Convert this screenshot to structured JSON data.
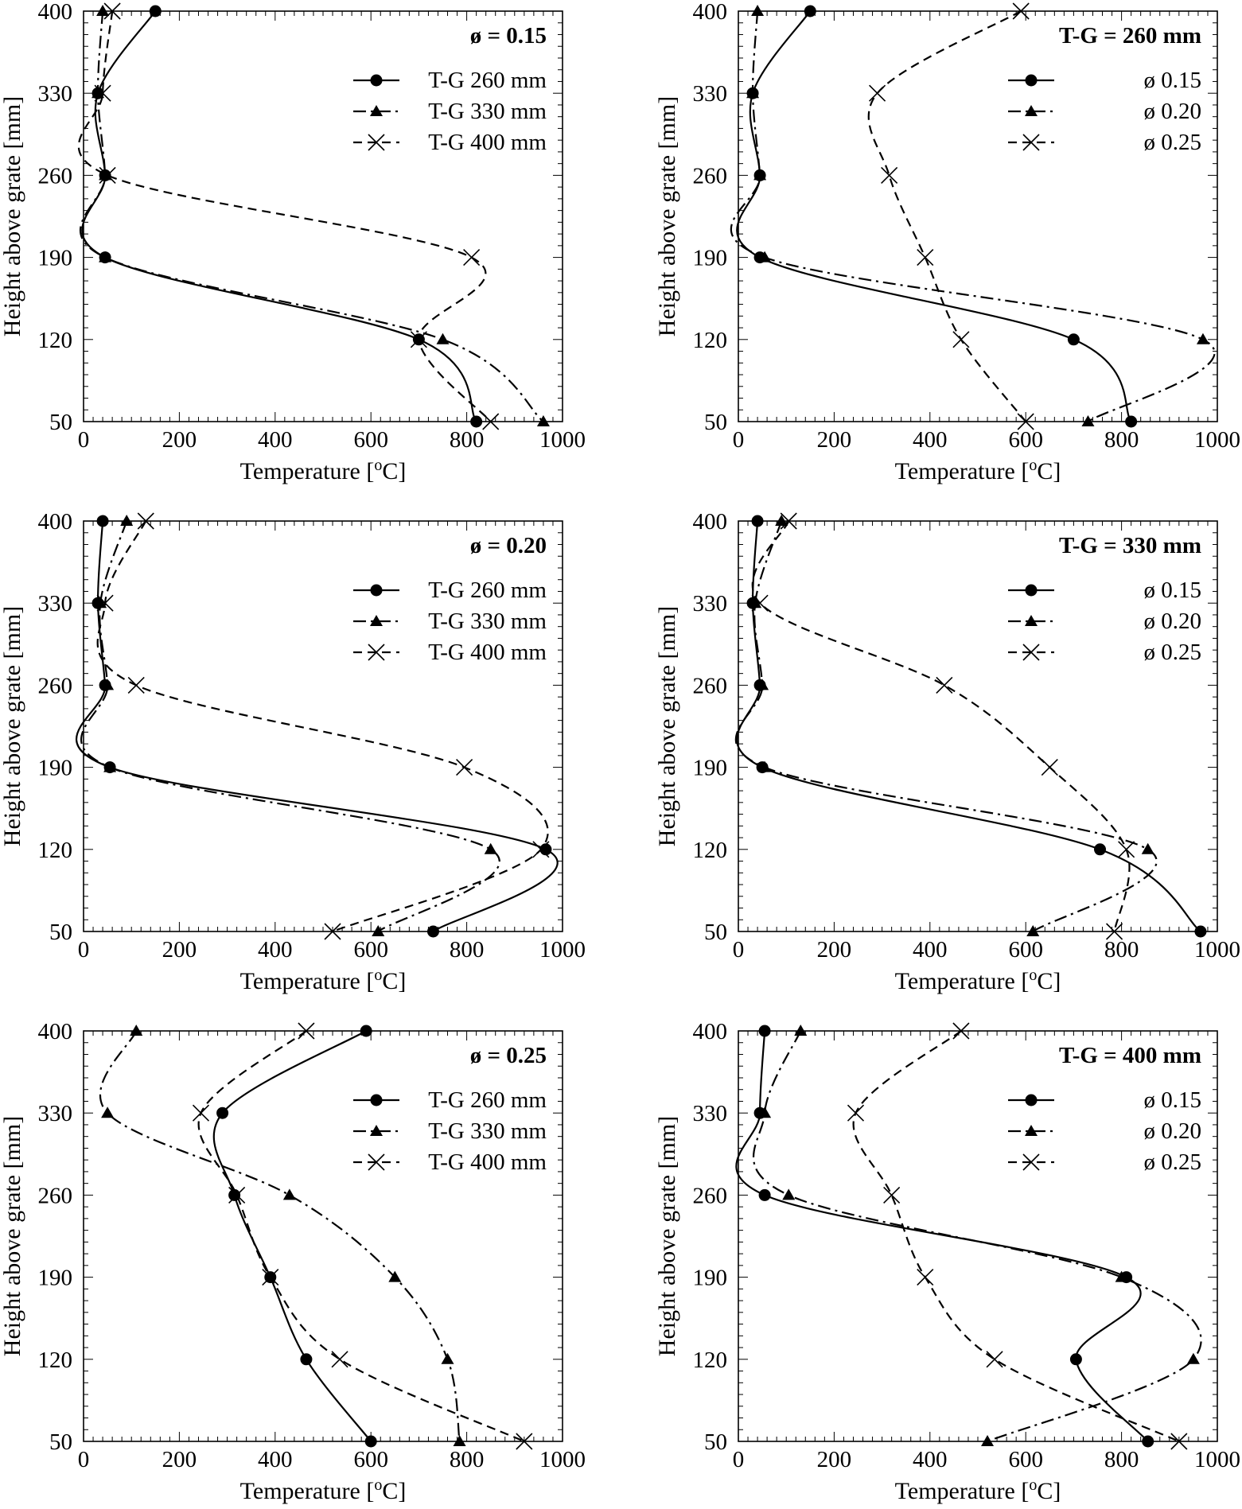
{
  "chart_data": [
    {
      "type": "line",
      "title": "ø = 0.15",
      "xlabel": "Temperature [",
      "xlabel_sup": "o",
      "xlabel_end": "C]",
      "ylabel": "Height above grate [mm]",
      "xlim": [
        0,
        1000
      ],
      "ylim": [
        50,
        400
      ],
      "xticks": [
        "0",
        "200",
        "400",
        "600",
        "800",
        "1000"
      ],
      "yticks": [
        "50",
        "120",
        "190",
        "260",
        "330",
        "400"
      ],
      "ytick_values": [
        50,
        120,
        190,
        260,
        330,
        400
      ],
      "legend_position": "top-right",
      "series": [
        {
          "name": "T-G 260 mm",
          "marker": "circle",
          "dash": "solid",
          "points": [
            {
              "x": 150,
              "y": 400
            },
            {
              "x": 30,
              "y": 330
            },
            {
              "x": 45,
              "y": 260
            },
            {
              "x": 45,
              "y": 190
            },
            {
              "x": 700,
              "y": 120
            },
            {
              "x": 820,
              "y": 50
            }
          ]
        },
        {
          "name": "T-G 330 mm",
          "marker": "triangle",
          "dash": "dashdot",
          "points": [
            {
              "x": 40,
              "y": 400
            },
            {
              "x": 30,
              "y": 330
            },
            {
              "x": 45,
              "y": 260
            },
            {
              "x": 45,
              "y": 190
            },
            {
              "x": 750,
              "y": 120
            },
            {
              "x": 960,
              "y": 50
            }
          ]
        },
        {
          "name": "T-G 400 mm",
          "marker": "x",
          "dash": "dashed",
          "points": [
            {
              "x": 60,
              "y": 400
            },
            {
              "x": 40,
              "y": 330
            },
            {
              "x": 50,
              "y": 260
            },
            {
              "x": 810,
              "y": 190
            },
            {
              "x": 700,
              "y": 120
            },
            {
              "x": 850,
              "y": 50
            }
          ]
        }
      ]
    },
    {
      "type": "line",
      "title": "T-G = 260 mm",
      "xlabel": "Temperature [",
      "xlabel_sup": "o",
      "xlabel_end": "C]",
      "ylabel": "Height above grate [mm]",
      "xlim": [
        0,
        1000
      ],
      "ylim": [
        50,
        400
      ],
      "xticks": [
        "0",
        "200",
        "400",
        "600",
        "800",
        "1000"
      ],
      "yticks": [
        "50",
        "120",
        "190",
        "260",
        "330",
        "400"
      ],
      "ytick_values": [
        50,
        120,
        190,
        260,
        330,
        400
      ],
      "legend_position": "top-right",
      "series": [
        {
          "name": "ø 0.15",
          "marker": "circle",
          "dash": "solid",
          "points": [
            {
              "x": 150,
              "y": 400
            },
            {
              "x": 30,
              "y": 330
            },
            {
              "x": 45,
              "y": 260
            },
            {
              "x": 45,
              "y": 190
            },
            {
              "x": 700,
              "y": 120
            },
            {
              "x": 820,
              "y": 50
            }
          ]
        },
        {
          "name": "ø 0.20",
          "marker": "triangle",
          "dash": "dashdot",
          "points": [
            {
              "x": 40,
              "y": 400
            },
            {
              "x": 30,
              "y": 330
            },
            {
              "x": 45,
              "y": 260
            },
            {
              "x": 55,
              "y": 190
            },
            {
              "x": 970,
              "y": 120
            },
            {
              "x": 730,
              "y": 50
            }
          ]
        },
        {
          "name": "ø 0.25",
          "marker": "x",
          "dash": "dashed",
          "points": [
            {
              "x": 590,
              "y": 400
            },
            {
              "x": 290,
              "y": 330
            },
            {
              "x": 315,
              "y": 260
            },
            {
              "x": 390,
              "y": 190
            },
            {
              "x": 465,
              "y": 120
            },
            {
              "x": 600,
              "y": 50
            }
          ]
        }
      ]
    },
    {
      "type": "line",
      "title": "ø = 0.20",
      "xlabel": "Temperature [",
      "xlabel_sup": "o",
      "xlabel_end": "C]",
      "ylabel": "Height above grate [mm]",
      "xlim": [
        0,
        1000
      ],
      "ylim": [
        50,
        400
      ],
      "xticks": [
        "0",
        "200",
        "400",
        "600",
        "800",
        "1000"
      ],
      "yticks": [
        "50",
        "120",
        "190",
        "260",
        "330",
        "400"
      ],
      "ytick_values": [
        50,
        120,
        190,
        260,
        330,
        400
      ],
      "legend_position": "top-right",
      "series": [
        {
          "name": "T-G 260 mm",
          "marker": "circle",
          "dash": "solid",
          "points": [
            {
              "x": 40,
              "y": 400
            },
            {
              "x": 30,
              "y": 330
            },
            {
              "x": 45,
              "y": 260
            },
            {
              "x": 55,
              "y": 190
            },
            {
              "x": 965,
              "y": 120
            },
            {
              "x": 730,
              "y": 50
            }
          ]
        },
        {
          "name": "T-G 330 mm",
          "marker": "triangle",
          "dash": "dashdot",
          "points": [
            {
              "x": 90,
              "y": 400
            },
            {
              "x": 35,
              "y": 330
            },
            {
              "x": 50,
              "y": 260
            },
            {
              "x": 55,
              "y": 190
            },
            {
              "x": 850,
              "y": 120
            },
            {
              "x": 615,
              "y": 50
            }
          ]
        },
        {
          "name": "T-G 400 mm",
          "marker": "x",
          "dash": "dashed",
          "points": [
            {
              "x": 130,
              "y": 400
            },
            {
              "x": 45,
              "y": 330
            },
            {
              "x": 110,
              "y": 260
            },
            {
              "x": 795,
              "y": 190
            },
            {
              "x": 955,
              "y": 120
            },
            {
              "x": 520,
              "y": 50
            }
          ]
        }
      ]
    },
    {
      "type": "line",
      "title": "T-G = 330 mm",
      "xlabel": "Temperature [",
      "xlabel_sup": "o",
      "xlabel_end": "C]",
      "ylabel": "Height above grate [mm]",
      "xlim": [
        0,
        1000
      ],
      "ylim": [
        50,
        400
      ],
      "xticks": [
        "0",
        "200",
        "400",
        "600",
        "800",
        "1000"
      ],
      "yticks": [
        "50",
        "120",
        "190",
        "260",
        "330",
        "400"
      ],
      "ytick_values": [
        50,
        120,
        190,
        260,
        330,
        400
      ],
      "legend_position": "top-right",
      "series": [
        {
          "name": "ø 0.15",
          "marker": "circle",
          "dash": "solid",
          "points": [
            {
              "x": 40,
              "y": 400
            },
            {
              "x": 30,
              "y": 330
            },
            {
              "x": 45,
              "y": 260
            },
            {
              "x": 50,
              "y": 190
            },
            {
              "x": 755,
              "y": 120
            },
            {
              "x": 965,
              "y": 50
            }
          ]
        },
        {
          "name": "ø 0.20",
          "marker": "triangle",
          "dash": "dashdot",
          "points": [
            {
              "x": 90,
              "y": 400
            },
            {
              "x": 35,
              "y": 330
            },
            {
              "x": 50,
              "y": 260
            },
            {
              "x": 55,
              "y": 190
            },
            {
              "x": 855,
              "y": 120
            },
            {
              "x": 615,
              "y": 50
            }
          ]
        },
        {
          "name": "ø 0.25",
          "marker": "x",
          "dash": "dashed",
          "points": [
            {
              "x": 105,
              "y": 400
            },
            {
              "x": 45,
              "y": 330
            },
            {
              "x": 430,
              "y": 260
            },
            {
              "x": 650,
              "y": 190
            },
            {
              "x": 810,
              "y": 120
            },
            {
              "x": 785,
              "y": 50
            }
          ]
        }
      ]
    },
    {
      "type": "line",
      "title": "ø = 0.25",
      "xlabel": "Temperature [",
      "xlabel_sup": "o",
      "xlabel_end": "C]",
      "ylabel": "Height above grate [mm]",
      "xlim": [
        0,
        1000
      ],
      "ylim": [
        50,
        400
      ],
      "xticks": [
        "0",
        "200",
        "400",
        "600",
        "800",
        "1000"
      ],
      "yticks": [
        "50",
        "120",
        "190",
        "260",
        "330",
        "400"
      ],
      "ytick_values": [
        50,
        120,
        190,
        260,
        330,
        400
      ],
      "legend_position": "top-right",
      "series": [
        {
          "name": "T-G 260 mm",
          "marker": "circle",
          "dash": "solid",
          "points": [
            {
              "x": 590,
              "y": 400
            },
            {
              "x": 290,
              "y": 330
            },
            {
              "x": 315,
              "y": 260
            },
            {
              "x": 390,
              "y": 190
            },
            {
              "x": 465,
              "y": 120
            },
            {
              "x": 600,
              "y": 50
            }
          ]
        },
        {
          "name": "T-G 330 mm",
          "marker": "triangle",
          "dash": "dashdot",
          "points": [
            {
              "x": 110,
              "y": 400
            },
            {
              "x": 50,
              "y": 330
            },
            {
              "x": 430,
              "y": 260
            },
            {
              "x": 650,
              "y": 190
            },
            {
              "x": 760,
              "y": 120
            },
            {
              "x": 785,
              "y": 50
            }
          ]
        },
        {
          "name": "T-G 400 mm",
          "marker": "x",
          "dash": "dashed",
          "points": [
            {
              "x": 465,
              "y": 400
            },
            {
              "x": 245,
              "y": 330
            },
            {
              "x": 320,
              "y": 260
            },
            {
              "x": 390,
              "y": 190
            },
            {
              "x": 535,
              "y": 120
            },
            {
              "x": 920,
              "y": 50
            }
          ]
        }
      ]
    },
    {
      "type": "line",
      "title": "T-G = 400 mm",
      "xlabel": "Temperature [",
      "xlabel_sup": "o",
      "xlabel_end": "C]",
      "ylabel": "Height above grate [mm]",
      "xlim": [
        0,
        1000
      ],
      "ylim": [
        50,
        400
      ],
      "xticks": [
        "0",
        "200",
        "400",
        "600",
        "800",
        "1000"
      ],
      "yticks": [
        "50",
        "120",
        "190",
        "260",
        "330",
        "400"
      ],
      "ytick_values": [
        50,
        120,
        190,
        260,
        330,
        400
      ],
      "legend_position": "top-right",
      "series": [
        {
          "name": "ø 0.15",
          "marker": "circle",
          "dash": "solid",
          "points": [
            {
              "x": 55,
              "y": 400
            },
            {
              "x": 45,
              "y": 330
            },
            {
              "x": 55,
              "y": 260
            },
            {
              "x": 810,
              "y": 190
            },
            {
              "x": 705,
              "y": 120
            },
            {
              "x": 855,
              "y": 50
            }
          ]
        },
        {
          "name": "ø 0.20",
          "marker": "triangle",
          "dash": "dashdot",
          "points": [
            {
              "x": 130,
              "y": 400
            },
            {
              "x": 55,
              "y": 330
            },
            {
              "x": 105,
              "y": 260
            },
            {
              "x": 800,
              "y": 190
            },
            {
              "x": 950,
              "y": 120
            },
            {
              "x": 520,
              "y": 50
            }
          ]
        },
        {
          "name": "ø 0.25",
          "marker": "x",
          "dash": "dashed",
          "points": [
            {
              "x": 465,
              "y": 400
            },
            {
              "x": 245,
              "y": 330
            },
            {
              "x": 320,
              "y": 260
            },
            {
              "x": 390,
              "y": 190
            },
            {
              "x": 535,
              "y": 120
            },
            {
              "x": 920,
              "y": 50
            }
          ]
        }
      ]
    }
  ]
}
